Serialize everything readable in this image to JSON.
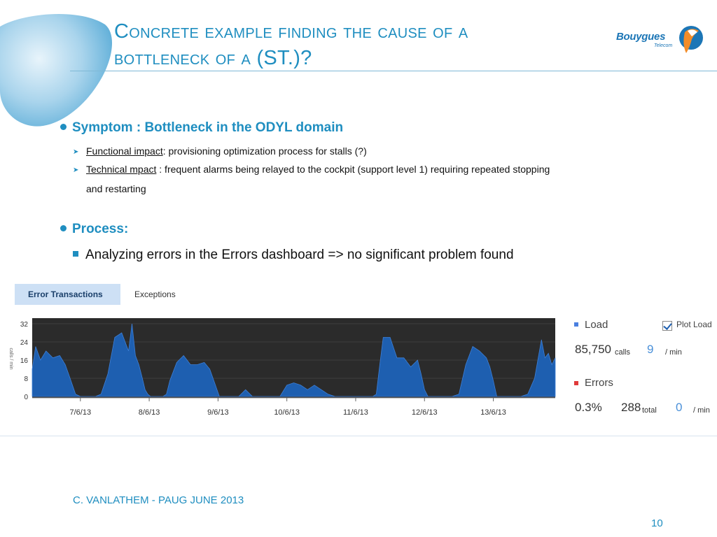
{
  "title": {
    "line1": "Concrete example finding the cause of a",
    "line2_prefix": "bottleneck of a ",
    "line2_suffix": "(ST.)?"
  },
  "logo": {
    "brand": "Bouygues",
    "sub": "Telecom"
  },
  "symptom": {
    "heading": "Symptom : Bottleneck in the ODYL domain",
    "items": [
      {
        "label": "Functional impact",
        "text": ": provisioning optimization process for stalls (?)"
      },
      {
        "label": "Technical mpact",
        "text": " : frequent alarms being relayed to the cockpit (support level 1) requiring repeated stopping",
        "cont": "and restarting"
      }
    ]
  },
  "process": {
    "heading": "Process:",
    "items": [
      "Analyzing errors in the Errors dashboard => no significant problem found"
    ]
  },
  "dashboard": {
    "tabs": [
      {
        "label": "Error Transactions",
        "active": true
      },
      {
        "label": "Exceptions",
        "active": false
      }
    ],
    "load": {
      "label": "Load",
      "calls_total": "85,750",
      "calls_unit": "calls",
      "per_min": "9",
      "per_min_unit": "/ min",
      "plot_label": "Plot Load",
      "color": "#4a7fe0"
    },
    "errors": {
      "label": "Errors",
      "percent": "0.3%",
      "total": "288",
      "total_unit": "total",
      "per_min": "0",
      "per_min_unit": "/ min",
      "color": "#e03a3a"
    }
  },
  "chart_data": {
    "type": "area",
    "ylabel": "calls / min",
    "yticks": [
      0,
      8,
      16,
      24,
      32
    ],
    "ylim": [
      0,
      32
    ],
    "xticks": [
      "7/6/13",
      "8/6/13",
      "9/6/13",
      "10/6/13",
      "11/6/13",
      "12/6/13",
      "13/6/13"
    ],
    "series": [
      {
        "color": "#1e5fb0",
        "x": [
          0,
          0.05,
          0.12,
          0.2,
          0.3,
          0.4,
          0.48,
          0.55,
          0.63,
          0.7,
          0.78,
          0.85,
          0.92,
          1.0,
          1.1,
          1.2,
          1.3,
          1.4,
          1.45,
          1.5,
          1.55,
          1.6,
          1.64,
          1.68,
          1.72,
          1.76,
          1.8,
          1.85,
          1.9,
          1.95,
          2.0,
          2.1,
          2.2,
          2.3,
          2.4,
          2.5,
          2.58,
          2.65,
          2.72,
          2.8,
          2.86,
          2.92,
          3.0,
          3.1,
          3.2,
          3.3,
          3.4,
          3.5,
          3.6,
          3.7,
          3.8,
          3.9,
          4.0,
          4.1,
          4.2,
          4.3,
          4.4,
          4.5,
          4.6,
          4.7,
          4.75,
          4.8,
          4.85,
          4.9,
          4.95,
          5.0,
          5.05,
          5.1,
          5.2,
          5.3,
          5.4,
          5.5,
          5.6,
          5.65,
          5.7,
          5.75,
          5.8,
          5.85,
          5.9,
          6.0,
          6.1,
          6.2,
          6.3,
          6.4,
          6.5,
          6.6,
          6.65,
          6.7,
          6.75,
          6.8,
          6.85,
          6.9,
          6.95,
          7.0,
          7.1,
          7.2,
          7.3,
          7.4,
          7.45,
          7.5,
          7.55,
          7.6
        ],
        "y": [
          12,
          22,
          16,
          20,
          17,
          18,
          14,
          8,
          1,
          0,
          0,
          0,
          0,
          1,
          10,
          26,
          28,
          20,
          32,
          18,
          14,
          8,
          3,
          1,
          0,
          0,
          0,
          0,
          0,
          1,
          7,
          15,
          18,
          14,
          14,
          15,
          12,
          6,
          0,
          0,
          0,
          0,
          0,
          3,
          0,
          0,
          0,
          0,
          0,
          5,
          6,
          5,
          3,
          5,
          3,
          1,
          0,
          0,
          0,
          0,
          0,
          0,
          0,
          0,
          0,
          1,
          14,
          26,
          26,
          17,
          17,
          13,
          16,
          10,
          3,
          0,
          0,
          0,
          0,
          0,
          0,
          1,
          14,
          22,
          20,
          17,
          13,
          7,
          0,
          0,
          0,
          0,
          0,
          0,
          0,
          1,
          8,
          25,
          17,
          19,
          14,
          17
        ]
      }
    ]
  },
  "footer": {
    "author": "C. VANLATHEM - PAUG JUNE 2013",
    "page": "10"
  }
}
